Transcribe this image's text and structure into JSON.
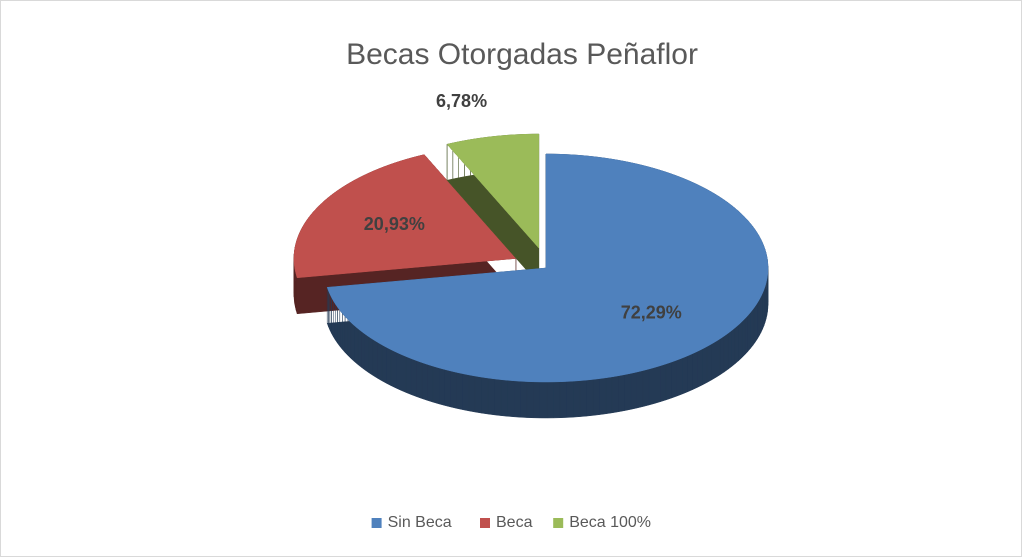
{
  "chart_data": {
    "type": "pie",
    "title": "Becas Otorgadas Peñaflor",
    "categories": [
      "Sin Beca",
      "Beca",
      "Beca 100%"
    ],
    "values": [
      72.29,
      20.93,
      6.78
    ],
    "value_labels": [
      "72,29%",
      "20,93%",
      "6,78%"
    ],
    "colors": [
      "#4f81bd",
      "#c0504d",
      "#9bbb59"
    ],
    "legend": "bottom"
  }
}
